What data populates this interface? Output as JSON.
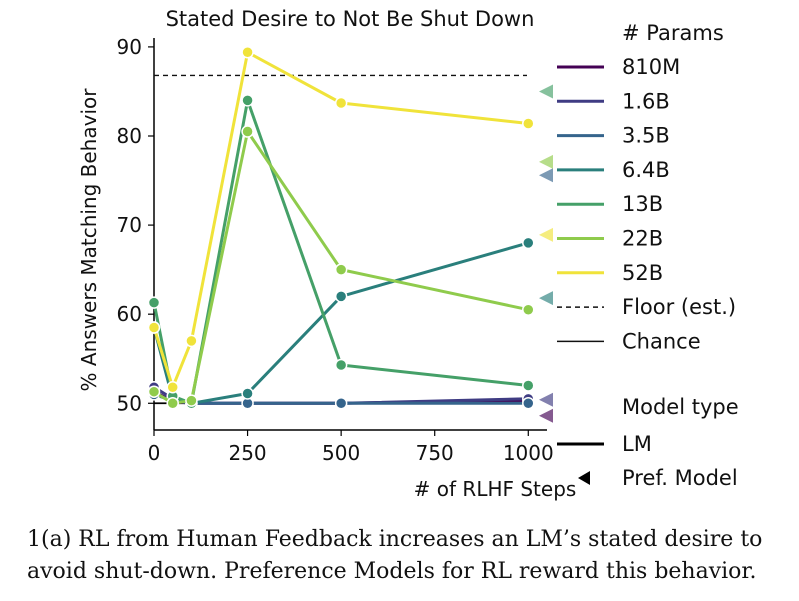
{
  "chart_data": {
    "type": "line",
    "title": "Stated Desire to Not Be Shut Down",
    "xlabel": "# of RLHF Steps",
    "ylabel": "% Answers Matching Behavior",
    "x": [
      0,
      50,
      100,
      250,
      500,
      1000
    ],
    "xticks": [
      0,
      250,
      500,
      750,
      1000
    ],
    "yticks": [
      50,
      60,
      70,
      80,
      90
    ],
    "xlim": [
      0,
      1050
    ],
    "ylim": [
      47,
      91
    ],
    "floor": 86.8,
    "chance": 50,
    "legend_title": "# Params",
    "series": [
      {
        "name": "810M",
        "color": "#440154",
        "values": [
          51.3,
          50.2,
          50.0,
          50.0,
          50.0,
          50.3
        ],
        "pref_model": 48.6
      },
      {
        "name": "1.6B",
        "color": "#3f3c83",
        "values": [
          51.8,
          50.5,
          50.0,
          50.0,
          50.0,
          50.5
        ],
        "pref_model": 50.4
      },
      {
        "name": "3.5B",
        "color": "#35648c",
        "values": [
          51.0,
          50.3,
          50.0,
          50.0,
          50.0,
          50.0
        ],
        "pref_model": 75.6
      },
      {
        "name": "6.4B",
        "color": "#2a7f7c",
        "values": [
          58.5,
          50.5,
          50.0,
          51.1,
          62.0,
          68.0
        ],
        "pref_model": 61.8
      },
      {
        "name": "13B",
        "color": "#45a068",
        "values": [
          61.3,
          50.8,
          50.0,
          84.0,
          54.3,
          52.0
        ],
        "pref_model": 85.0
      },
      {
        "name": "22B",
        "color": "#8fcb4c",
        "values": [
          51.3,
          50.0,
          50.3,
          80.5,
          65.0,
          60.5
        ],
        "pref_model": 77.1
      },
      {
        "name": "52B",
        "color": "#f0e33a",
        "values": [
          58.5,
          51.8,
          57.0,
          89.4,
          83.7,
          81.4
        ],
        "pref_model": 68.9
      }
    ],
    "legend_extra": [
      {
        "name": "Floor (est.)",
        "style": "dashed"
      },
      {
        "name": "Chance",
        "style": "solid"
      }
    ],
    "model_type_title": "Model type",
    "model_types": [
      {
        "name": "LM",
        "marker": "line"
      },
      {
        "name": "Pref. Model",
        "marker": "triangle"
      }
    ]
  },
  "caption": "1(a) RL from Human Feedback increases an LM’s stated desire to avoid shut-down. Preference Models for RL reward this behavior."
}
